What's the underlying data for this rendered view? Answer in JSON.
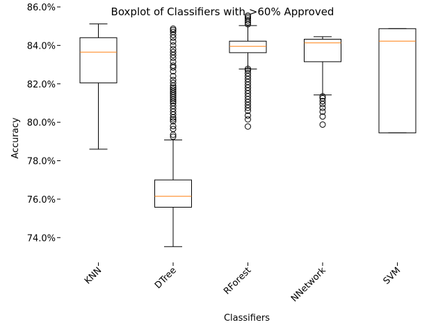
{
  "chart_data": {
    "type": "boxplot",
    "title": "Boxplot of Classifiers with >60% Approved",
    "xlabel": "Classifiers",
    "ylabel": "Accuracy",
    "categories": [
      "KNN",
      "DTree",
      "RForest",
      "NNetwork",
      "SVM"
    ],
    "y_tick_values": [
      0.74,
      0.76,
      0.78,
      0.8,
      0.82,
      0.84,
      0.86
    ],
    "y_tick_labels": [
      "74.0%",
      "76.0%",
      "78.0%",
      "80.0%",
      "82.0%",
      "84.0%",
      "86.0%"
    ],
    "ylim": [
      0.7307,
      0.86
    ],
    "grid": false,
    "boxes": [
      {
        "name": "KNN",
        "whisker_low": 0.786,
        "q1": 0.8205,
        "median": 0.8365,
        "q3": 0.844,
        "whisker_high": 0.8512,
        "outliers": []
      },
      {
        "name": "DTree",
        "whisker_low": 0.7353,
        "q1": 0.7558,
        "median": 0.7615,
        "q3": 0.77,
        "whisker_high": 0.7908,
        "outliers": [
          0.7925,
          0.7935,
          0.7965,
          0.798,
          0.8005,
          0.8015,
          0.8025,
          0.804,
          0.8055,
          0.807,
          0.8085,
          0.81,
          0.811,
          0.812,
          0.813,
          0.814,
          0.815,
          0.816,
          0.817,
          0.818,
          0.819,
          0.8205,
          0.822,
          0.824,
          0.8265,
          0.8285,
          0.8295,
          0.8315,
          0.8335,
          0.835,
          0.8365,
          0.838,
          0.84,
          0.842,
          0.844,
          0.8455,
          0.847,
          0.848,
          0.8487
        ]
      },
      {
        "name": "RForest",
        "whisker_low": 0.8277,
        "q1": 0.8362,
        "median": 0.8395,
        "q3": 0.8422,
        "whisker_high": 0.8503,
        "outliers": [
          0.7978,
          0.8015,
          0.8035,
          0.806,
          0.8075,
          0.809,
          0.8105,
          0.812,
          0.8135,
          0.815,
          0.8165,
          0.818,
          0.8195,
          0.821,
          0.8225,
          0.824,
          0.8255,
          0.827,
          0.8278,
          0.851,
          0.852,
          0.853,
          0.854,
          0.8548,
          0.8555
        ]
      },
      {
        "name": "NNetwork",
        "whisker_low": 0.8142,
        "q1": 0.8315,
        "median": 0.8413,
        "q3": 0.8432,
        "whisker_high": 0.8445,
        "outliers": [
          0.7988,
          0.803,
          0.8055,
          0.8075,
          0.8095,
          0.811,
          0.8125,
          0.8135
        ]
      },
      {
        "name": "SVM",
        "whisker_low": 0.7945,
        "q1": 0.7945,
        "median": 0.8422,
        "q3": 0.8487,
        "whisker_high": 0.8487,
        "outliers": []
      }
    ],
    "colors": {
      "box": "#000000",
      "median": "#ff7f0e",
      "outlier": "#000000"
    }
  }
}
